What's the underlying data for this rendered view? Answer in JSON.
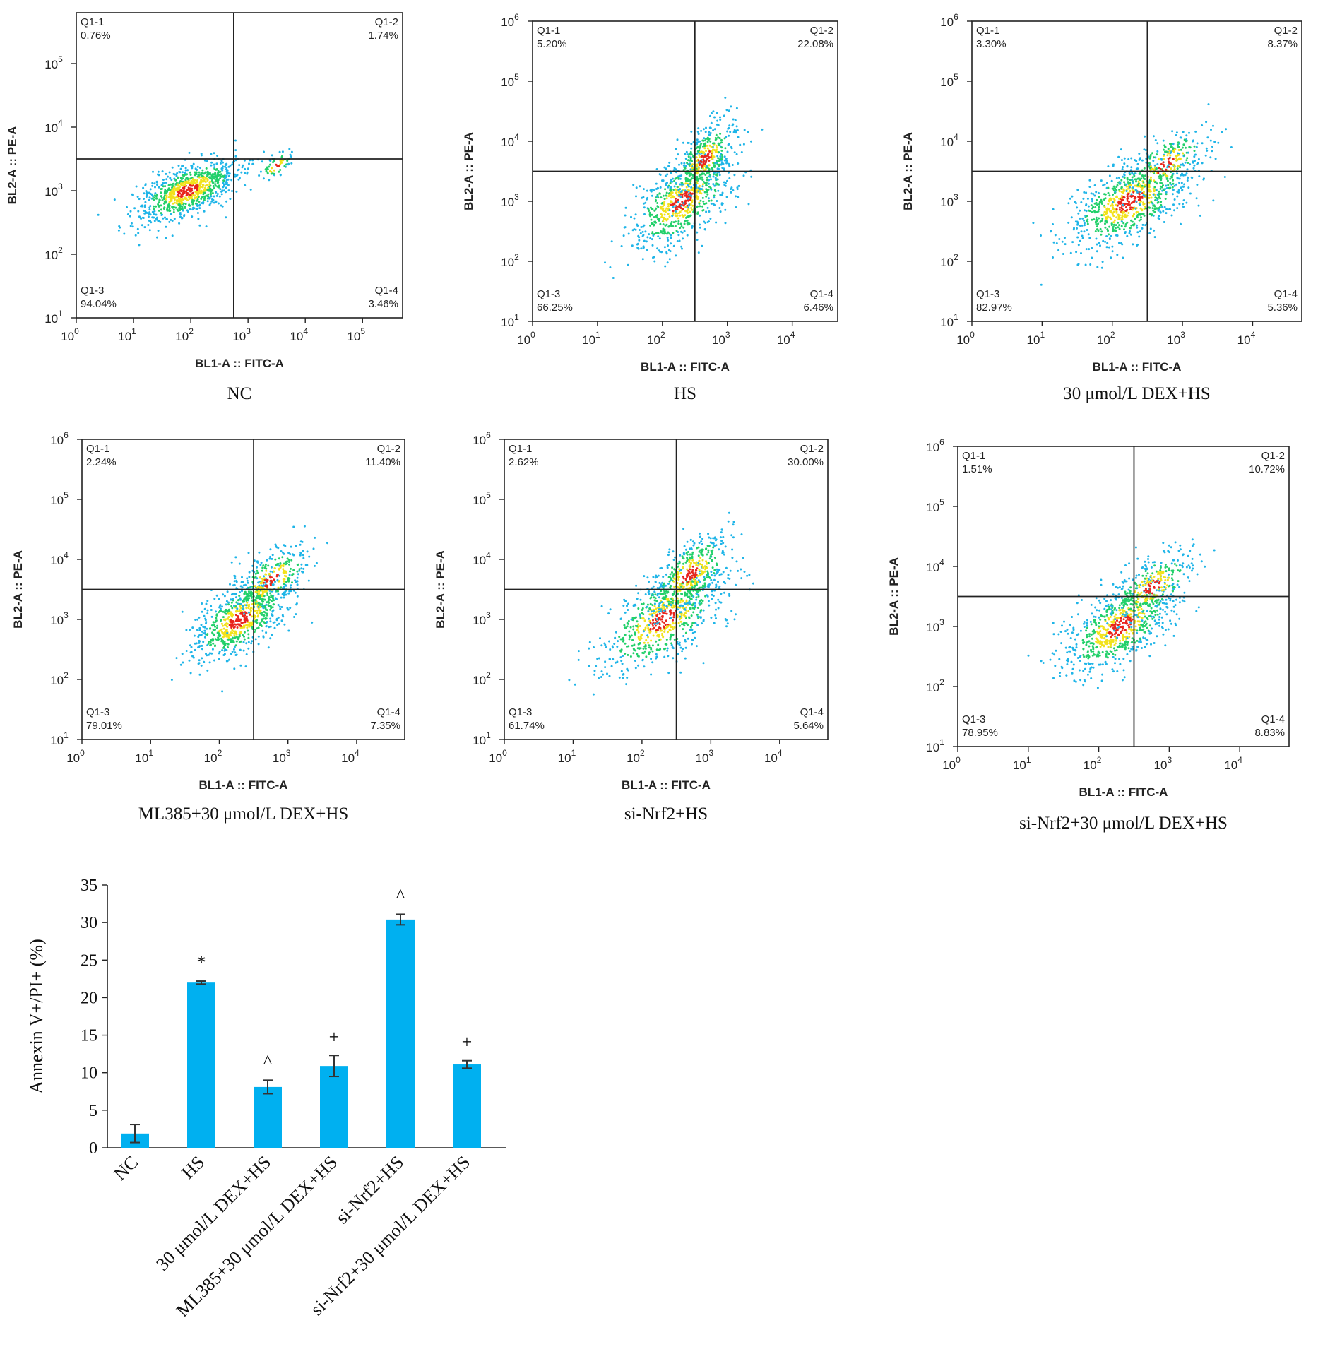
{
  "chart_data": [
    {
      "type": "scatter",
      "caption": "NC",
      "xlabel": "BL1-A :: FITC-A",
      "ylabel": "BL2-A :: PE-A",
      "x_scale": "log",
      "y_scale": "log",
      "x_ticks": [
        "10",
        "10",
        "10",
        "10",
        "10",
        "10"
      ],
      "x_tick_exp": [
        "0",
        "1",
        "2",
        "3",
        "4",
        "5"
      ],
      "y_ticks": [
        "10",
        "10",
        "10",
        "10",
        "10"
      ],
      "y_tick_exp": [
        "1",
        "2",
        "3",
        "4",
        "5"
      ],
      "xlim_exp": [
        0,
        5.7
      ],
      "ylim_exp": [
        1,
        5.8
      ],
      "gate_exp": [
        2.75,
        3.5
      ],
      "quadrants": [
        {
          "label": "Q1-1",
          "value": "0.76%"
        },
        {
          "label": "Q1-2",
          "value": "1.74%"
        },
        {
          "label": "Q1-3",
          "value": "94.04%"
        },
        {
          "label": "Q1-4",
          "value": "3.46%"
        }
      ],
      "clusters": [
        {
          "x": 1.95,
          "y": 3.0,
          "sx": 0.45,
          "sy": 0.25,
          "n": 900
        },
        {
          "x": 3.5,
          "y": 3.4,
          "sx": 0.15,
          "sy": 0.12,
          "n": 60
        }
      ]
    },
    {
      "type": "scatter",
      "caption": "HS",
      "xlabel": "BL1-A :: FITC-A",
      "ylabel": "BL2-A :: PE-A",
      "x_scale": "log",
      "y_scale": "log",
      "x_ticks": [
        "10",
        "10",
        "10",
        "10",
        "10"
      ],
      "x_tick_exp": [
        "0",
        "1",
        "2",
        "3",
        "4"
      ],
      "y_ticks": [
        "10",
        "10",
        "10",
        "10",
        "10",
        "10"
      ],
      "y_tick_exp": [
        "1",
        "2",
        "3",
        "4",
        "5",
        "6"
      ],
      "xlim_exp": [
        0,
        4.7
      ],
      "ylim_exp": [
        1,
        6
      ],
      "gate_exp": [
        2.5,
        3.5
      ],
      "quadrants": [
        {
          "label": "Q1-1",
          "value": "5.20%"
        },
        {
          "label": "Q1-2",
          "value": "22.08%"
        },
        {
          "label": "Q1-3",
          "value": "66.25%"
        },
        {
          "label": "Q1-4",
          "value": "6.46%"
        }
      ],
      "clusters": [
        {
          "x": 2.3,
          "y": 3.0,
          "sx": 0.4,
          "sy": 0.4,
          "n": 700
        },
        {
          "x": 2.65,
          "y": 3.7,
          "sx": 0.25,
          "sy": 0.3,
          "n": 400
        }
      ]
    },
    {
      "type": "scatter",
      "caption": "30 μmol/L DEX+HS",
      "xlabel": "BL1-A :: FITC-A",
      "ylabel": "BL2-A :: PE-A",
      "x_scale": "log",
      "y_scale": "log",
      "x_ticks": [
        "10",
        "10",
        "10",
        "10",
        "10"
      ],
      "x_tick_exp": [
        "0",
        "1",
        "2",
        "3",
        "4"
      ],
      "y_ticks": [
        "10",
        "10",
        "10",
        "10",
        "10",
        "10"
      ],
      "y_tick_exp": [
        "1",
        "2",
        "3",
        "4",
        "5",
        "6"
      ],
      "xlim_exp": [
        0,
        4.7
      ],
      "ylim_exp": [
        1,
        6
      ],
      "gate_exp": [
        2.5,
        3.5
      ],
      "quadrants": [
        {
          "label": "Q1-1",
          "value": "3.30%"
        },
        {
          "label": "Q1-2",
          "value": "8.37%"
        },
        {
          "label": "Q1-3",
          "value": "82.97%"
        },
        {
          "label": "Q1-4",
          "value": "5.36%"
        }
      ],
      "clusters": [
        {
          "x": 2.25,
          "y": 3.0,
          "sx": 0.45,
          "sy": 0.4,
          "n": 800
        },
        {
          "x": 2.75,
          "y": 3.6,
          "sx": 0.3,
          "sy": 0.3,
          "n": 250
        }
      ]
    },
    {
      "type": "scatter",
      "caption": "ML385+30 μmol/L DEX+HS",
      "xlabel": "BL1-A :: FITC-A",
      "ylabel": "BL2-A :: PE-A",
      "x_scale": "log",
      "y_scale": "log",
      "x_ticks": [
        "10",
        "10",
        "10",
        "10",
        "10"
      ],
      "x_tick_exp": [
        "0",
        "1",
        "2",
        "3",
        "4"
      ],
      "y_ticks": [
        "10",
        "10",
        "10",
        "10",
        "10",
        "10"
      ],
      "y_tick_exp": [
        "1",
        "2",
        "3",
        "4",
        "5",
        "6"
      ],
      "xlim_exp": [
        0,
        4.7
      ],
      "ylim_exp": [
        1,
        6
      ],
      "gate_exp": [
        2.5,
        3.5
      ],
      "quadrants": [
        {
          "label": "Q1-1",
          "value": "2.24%"
        },
        {
          "label": "Q1-2",
          "value": "11.40%"
        },
        {
          "label": "Q1-3",
          "value": "79.01%"
        },
        {
          "label": "Q1-4",
          "value": "7.35%"
        }
      ],
      "clusters": [
        {
          "x": 2.3,
          "y": 3.0,
          "sx": 0.35,
          "sy": 0.35,
          "n": 750
        },
        {
          "x": 2.75,
          "y": 3.65,
          "sx": 0.3,
          "sy": 0.3,
          "n": 300
        }
      ]
    },
    {
      "type": "scatter",
      "caption": "si-Nrf2+HS",
      "xlabel": "BL1-A :: FITC-A",
      "ylabel": "BL2-A :: PE-A",
      "x_scale": "log",
      "y_scale": "log",
      "x_ticks": [
        "10",
        "10",
        "10",
        "10",
        "10"
      ],
      "x_tick_exp": [
        "0",
        "1",
        "2",
        "3",
        "4"
      ],
      "y_ticks": [
        "10",
        "10",
        "10",
        "10",
        "10",
        "10"
      ],
      "y_tick_exp": [
        "1",
        "2",
        "3",
        "4",
        "5",
        "6"
      ],
      "xlim_exp": [
        0,
        4.7
      ],
      "ylim_exp": [
        1,
        6
      ],
      "gate_exp": [
        2.5,
        3.5
      ],
      "quadrants": [
        {
          "label": "Q1-1",
          "value": "2.62%"
        },
        {
          "label": "Q1-2",
          "value": "30.00%"
        },
        {
          "label": "Q1-3",
          "value": "61.74%"
        },
        {
          "label": "Q1-4",
          "value": "5.64%"
        }
      ],
      "clusters": [
        {
          "x": 2.3,
          "y": 3.0,
          "sx": 0.45,
          "sy": 0.45,
          "n": 700
        },
        {
          "x": 2.7,
          "y": 3.75,
          "sx": 0.3,
          "sy": 0.35,
          "n": 450
        }
      ]
    },
    {
      "type": "scatter",
      "caption": "si-Nrf2+30 μmol/L DEX+HS",
      "xlabel": "BL1-A :: FITC-A",
      "ylabel": "BL2-A :: PE-A",
      "x_scale": "log",
      "y_scale": "log",
      "x_ticks": [
        "10",
        "10",
        "10",
        "10",
        "10"
      ],
      "x_tick_exp": [
        "0",
        "1",
        "2",
        "3",
        "4"
      ],
      "y_ticks": [
        "10",
        "10",
        "10",
        "10",
        "10",
        "10"
      ],
      "y_tick_exp": [
        "1",
        "2",
        "3",
        "4",
        "5",
        "6"
      ],
      "xlim_exp": [
        0,
        4.7
      ],
      "ylim_exp": [
        1,
        6
      ],
      "gate_exp": [
        2.5,
        3.5
      ],
      "quadrants": [
        {
          "label": "Q1-1",
          "value": "1.51%"
        },
        {
          "label": "Q1-2",
          "value": "10.72%"
        },
        {
          "label": "Q1-3",
          "value": "78.95%"
        },
        {
          "label": "Q1-4",
          "value": "8.83%"
        }
      ],
      "clusters": [
        {
          "x": 2.3,
          "y": 3.0,
          "sx": 0.4,
          "sy": 0.4,
          "n": 750
        },
        {
          "x": 2.75,
          "y": 3.65,
          "sx": 0.3,
          "sy": 0.3,
          "n": 300
        }
      ]
    },
    {
      "type": "bar",
      "categories": [
        "NC",
        "HS",
        "30 μmol/L DEX+HS",
        "ML385+30 μmol/L DEX+HS",
        "si-Nrf2+HS",
        "si-Nrf2+30 μmol/L DEX+HS"
      ],
      "values": [
        1.9,
        22.0,
        8.1,
        10.9,
        30.4,
        11.1
      ],
      "errors": [
        1.2,
        0.2,
        0.9,
        1.4,
        0.7,
        0.5
      ],
      "annotations": [
        "",
        "*",
        "^",
        "+",
        "^",
        "+"
      ],
      "ylabel": "Annexin V+/PI+ (%)",
      "ylim": [
        0,
        35
      ],
      "yticks": [
        0,
        5,
        10,
        15,
        20,
        25,
        30,
        35
      ],
      "color": "#00b0f0"
    }
  ]
}
